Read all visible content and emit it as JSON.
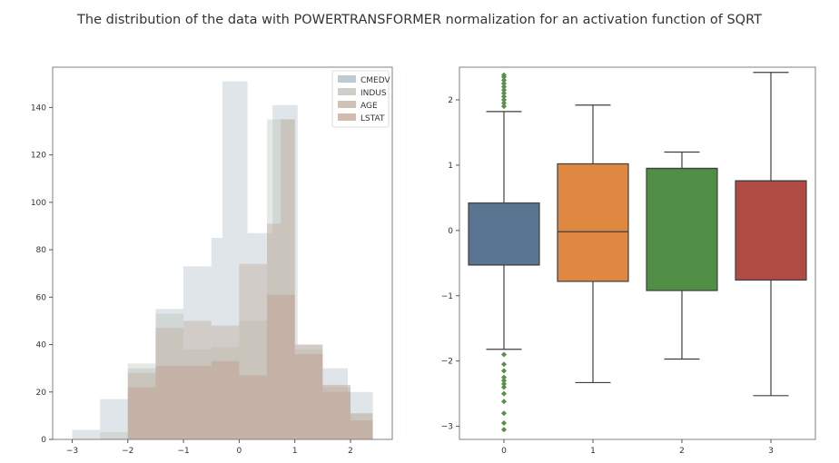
{
  "figure": {
    "title": "The distribution of the data with POWERTRANSFORMER normalization for an activation function of SQRT"
  },
  "chart_data": [
    {
      "type": "histogram",
      "xlim": [
        -3.35,
        2.75
      ],
      "ylim": [
        0,
        157
      ],
      "xticks": [
        -3,
        -2,
        -1,
        0,
        1,
        2
      ],
      "xtick_labels": [
        "−3",
        "−2",
        "−1",
        "0",
        "1",
        "2"
      ],
      "yticks": [
        0,
        20,
        40,
        60,
        80,
        100,
        120,
        140
      ],
      "ytick_labels": [
        "0",
        "20",
        "40",
        "60",
        "80",
        "100",
        "120",
        "140"
      ],
      "grid": false,
      "legend_position": "top-right",
      "series": [
        {
          "name": "CMEDV",
          "color": "#a3b5bf",
          "alpha": 0.35,
          "bins": [
            [
              -3.0,
              -2.5,
              4
            ],
            [
              -2.5,
              -2.0,
              17
            ],
            [
              -2.0,
              -1.5,
              30
            ],
            [
              -1.5,
              -1.0,
              55
            ],
            [
              -1.0,
              -0.5,
              73
            ],
            [
              -0.5,
              -0.3,
              85
            ],
            [
              -0.3,
              0.15,
              151
            ],
            [
              0.15,
              0.6,
              87
            ],
            [
              0.6,
              1.05,
              141
            ],
            [
              1.05,
              1.5,
              40
            ],
            [
              1.5,
              1.95,
              30
            ],
            [
              1.95,
              2.4,
              20
            ]
          ]
        },
        {
          "name": "INDUS",
          "color": "#b6bcb0",
          "alpha": 0.35,
          "bins": [
            [
              -2.5,
              -2.0,
              3
            ],
            [
              -2.0,
              -1.5,
              32
            ],
            [
              -1.5,
              -1.0,
              53
            ],
            [
              -1.0,
              -0.5,
              38
            ],
            [
              -0.5,
              0.0,
              39
            ],
            [
              0.0,
              0.5,
              50
            ],
            [
              0.5,
              1.0,
              135
            ],
            [
              1.0,
              1.5,
              38
            ],
            [
              1.5,
              2.0,
              22
            ],
            [
              2.0,
              2.4,
              11
            ]
          ]
        },
        {
          "name": "AGE",
          "color": "#bea898",
          "alpha": 0.4,
          "bins": [
            [
              -2.0,
              -1.5,
              28
            ],
            [
              -1.5,
              -1.0,
              47
            ],
            [
              -1.0,
              -0.5,
              50
            ],
            [
              -0.5,
              0.0,
              48
            ],
            [
              0.0,
              0.5,
              74
            ],
            [
              0.5,
              0.75,
              91
            ],
            [
              0.75,
              1.0,
              135
            ],
            [
              1.0,
              1.5,
              40
            ],
            [
              1.5,
              2.0,
              20
            ],
            [
              2.0,
              2.4,
              11
            ]
          ]
        },
        {
          "name": "LSTAT",
          "color": "#c29e8d",
          "alpha": 0.45,
          "bins": [
            [
              -2.0,
              -1.5,
              22
            ],
            [
              -1.5,
              -1.0,
              31
            ],
            [
              -1.0,
              -0.5,
              31
            ],
            [
              -0.5,
              0.0,
              33
            ],
            [
              0.0,
              0.5,
              27
            ],
            [
              0.5,
              1.0,
              61
            ],
            [
              1.0,
              1.5,
              36
            ],
            [
              1.5,
              2.0,
              23
            ],
            [
              2.0,
              2.4,
              8
            ]
          ]
        }
      ]
    },
    {
      "type": "boxplot",
      "categories": [
        "0",
        "1",
        "2",
        "3"
      ],
      "ylim": [
        -3.2,
        2.5
      ],
      "yticks": [
        -3,
        -2,
        -1,
        0,
        1,
        2
      ],
      "ytick_labels": [
        "−3",
        "−2",
        "−1",
        "0",
        "1",
        "2"
      ],
      "grid": false,
      "boxes": [
        {
          "color": "#4c72b0",
          "fill": "#5a7592",
          "whislo": -1.82,
          "q1": -0.53,
          "med": -0.53,
          "q3": 0.42,
          "whishi": 1.82,
          "fliers": [
            1.9,
            1.95,
            2.0,
            2.05,
            2.1,
            2.15,
            2.2,
            2.25,
            2.3,
            2.35,
            2.38,
            -1.9,
            -2.05,
            -2.15,
            -2.25,
            -2.3,
            -2.35,
            -2.4,
            -2.5,
            -2.62,
            -2.8,
            -2.95,
            -3.05
          ]
        },
        {
          "color": "#dd8452",
          "fill": "#de8841",
          "whislo": -2.33,
          "q1": -0.78,
          "med": -0.02,
          "q3": 1.02,
          "whishi": 1.92,
          "fliers": []
        },
        {
          "color": "#55a868",
          "fill": "#4f8e44",
          "whislo": -1.97,
          "q1": -0.92,
          "med": 0.95,
          "q3": 0.95,
          "whishi": 1.2,
          "fliers": []
        },
        {
          "color": "#c44e52",
          "fill": "#b04b43",
          "whislo": -2.53,
          "q1": -0.76,
          "med": 0.76,
          "q3": 0.76,
          "whishi": 2.42,
          "fliers": []
        }
      ]
    }
  ]
}
